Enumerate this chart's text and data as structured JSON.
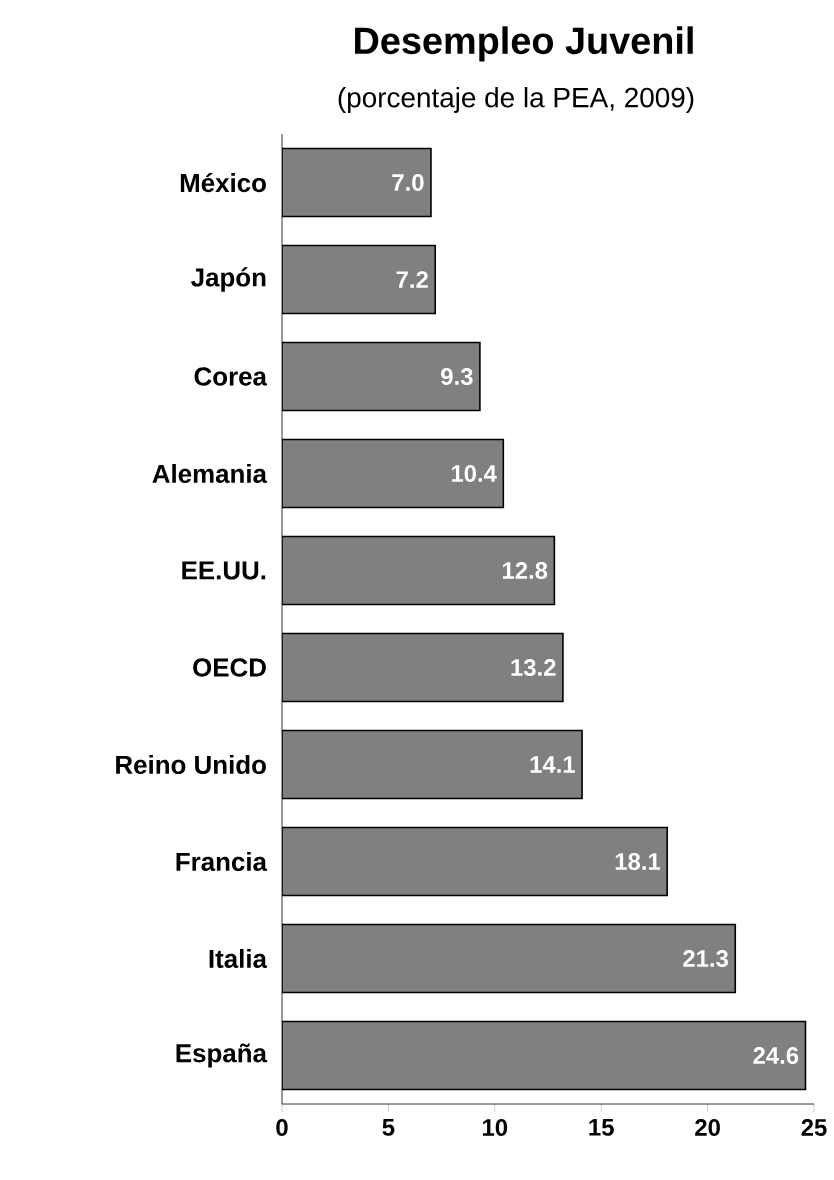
{
  "chart_data": {
    "type": "bar",
    "orientation": "horizontal",
    "title": "Desempleo Juvenil",
    "subtitle": "(porcentaje de la PEA, 2009)",
    "categories": [
      "México",
      "Japón",
      "Corea",
      "Alemania",
      "EE.UU.",
      "OECD",
      "Reino Unido",
      "Francia",
      "Italia",
      "España"
    ],
    "values": [
      7.0,
      7.2,
      9.3,
      10.4,
      12.8,
      13.2,
      14.1,
      18.1,
      21.3,
      24.6
    ],
    "color": "#808080",
    "xlim": [
      0,
      25
    ],
    "xticks": [
      0,
      5,
      10,
      15,
      20,
      25
    ],
    "value_labels": [
      "7.0",
      "7.2",
      "9.3",
      "10.4",
      "12.8",
      "13.2",
      "14.1",
      "18.1",
      "21.3",
      "24.6"
    ]
  }
}
